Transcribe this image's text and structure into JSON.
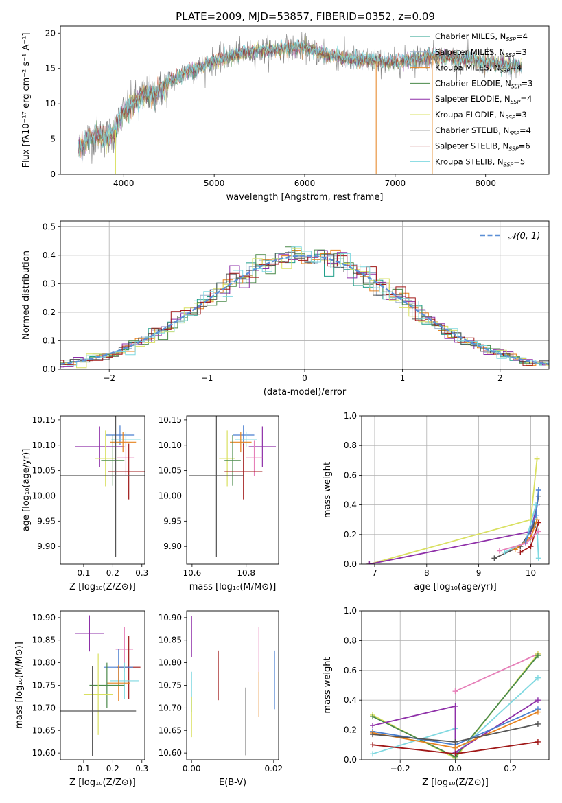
{
  "title": "PLATE=2009, MJD=53857, FIBERID=0352, z=0.09",
  "colors": {
    "chabrier_miles": "#1f9e89",
    "salpeter_miles": "#9bb0cc",
    "kroupa_miles": "#e6821e",
    "chabrier_elodie": "#4a8a4a",
    "salpeter_elodie": "#8e2fa8",
    "kroupa_elodie": "#d9e060",
    "chabrier_stelib": "#555555",
    "salpeter_stelib": "#a01818",
    "kroupa_stelib": "#7fd8e0",
    "normal": "#5b8fd6",
    "pink": "#e67fb8",
    "blue": "#4a7fd0"
  },
  "chart_data": [
    {
      "id": "spectrum",
      "type": "line",
      "title": "PLATE=2009, MJD=53857, FIBERID=0352, z=0.09",
      "xlabel": "wavelength [Angstrom, rest frame]",
      "ylabel": "Flux [fλ10⁻¹⁷ erg cm⁻² s⁻¹ A⁻¹]",
      "xlim": [
        3300,
        8700
      ],
      "ylim": [
        0,
        21
      ],
      "xticks": [
        "4000",
        "5000",
        "6000",
        "7000",
        "8000"
      ],
      "yticks": [
        "0",
        "5",
        "10",
        "15",
        "20"
      ],
      "legend_position": "right",
      "legend": [
        {
          "label": "Chabrier MILES, N",
          "sub": "SSP",
          "suffix": "=4"
        },
        {
          "label": "Salpeter MILES, N",
          "sub": "SSP",
          "suffix": "=3"
        },
        {
          "label": "Kroupa MILES, N",
          "sub": "SSP",
          "suffix": "=4"
        },
        {
          "label": "Chabrier ELODIE, N",
          "sub": "SSP",
          "suffix": "=3"
        },
        {
          "label": "Salpeter ELODIE, N",
          "sub": "SSP",
          "suffix": "=4"
        },
        {
          "label": "Kroupa ELODIE, N",
          "sub": "SSP",
          "suffix": "=3"
        },
        {
          "label": "Chabrier STELIB, N",
          "sub": "SSP",
          "suffix": "=4"
        },
        {
          "label": "Salpeter STELIB, N",
          "sub": "SSP",
          "suffix": "=6"
        },
        {
          "label": "Kroupa STELIB, N",
          "sub": "SSP",
          "suffix": "=5"
        }
      ],
      "continuum": {
        "x": [
          3500,
          3600,
          3700,
          3800,
          3900,
          4000,
          4100,
          4200,
          4300,
          4400,
          4500,
          4700,
          5000,
          5200,
          5500,
          5800,
          6000,
          6200,
          6500,
          6800,
          7000,
          7200,
          7400,
          7600,
          7800,
          8000,
          8200,
          8400
        ],
        "y": [
          3.5,
          5.0,
          5.5,
          5.2,
          6.0,
          9.0,
          10.0,
          11.0,
          11.2,
          11.8,
          13.0,
          14.5,
          16.0,
          16.8,
          17.5,
          17.8,
          18.0,
          17.0,
          16.3,
          16.0,
          15.8,
          16.3,
          16.8,
          16.5,
          16.2,
          15.8,
          15.5,
          15.2
        ]
      },
      "drops": [
        {
          "x": 3910,
          "series": "kroupa_elodie"
        },
        {
          "x": 6790,
          "series": "kroupa_miles"
        },
        {
          "x": 7410,
          "series": "kroupa_miles"
        }
      ]
    },
    {
      "id": "residuals",
      "type": "histogram",
      "xlabel": "(data-model)/error",
      "ylabel": "Normed distribution",
      "xlim": [
        -2.5,
        2.5
      ],
      "ylim": [
        0,
        0.52
      ],
      "xticks": [
        "−2",
        "−1",
        "0",
        "1",
        "2"
      ],
      "yticks": [
        "0.0",
        "0.1",
        "0.2",
        "0.3",
        "0.4",
        "0.5"
      ],
      "grid": true,
      "legend": "𝒩(0, 1)",
      "normal": {
        "mu": 0,
        "sigma": 1
      }
    },
    {
      "id": "age_vs_z",
      "type": "errorbar",
      "xlabel": "Z [log₁₀(Z/Z⊙)]",
      "ylabel": "age  [log₁₀(age/yr)]",
      "xlim": [
        0.02,
        0.31
      ],
      "ylim": [
        9.865,
        10.158
      ],
      "xticks": [
        "0.1",
        "0.2",
        "0.3"
      ],
      "yticks": [
        "9.90",
        "9.95",
        "10.00",
        "10.05",
        "10.10",
        "10.15"
      ],
      "points": [
        {
          "color": "blue",
          "x": 0.225,
          "y": 10.12,
          "xerr": 0.05,
          "yerr": 0.02
        },
        {
          "color": "kroupa_stelib",
          "x": 0.245,
          "y": 10.112,
          "xerr": 0.05,
          "yerr": 0.015
        },
        {
          "color": "salpeter_elodie",
          "x": 0.155,
          "y": 10.097,
          "xerr": 0.085,
          "yerr": 0.04
        },
        {
          "color": "kroupa_miles",
          "x": 0.235,
          "y": 10.106,
          "xerr": 0.045,
          "yerr": 0.02
        },
        {
          "color": "pink",
          "x": 0.245,
          "y": 10.075,
          "xerr": 0.03,
          "yerr": 0.035
        },
        {
          "color": "kroupa_elodie",
          "x": 0.175,
          "y": 10.074,
          "xerr": 0.035,
          "yerr": 0.055
        },
        {
          "color": "chabrier_elodie",
          "x": 0.2,
          "y": 10.07,
          "xerr": 0.04,
          "yerr": 0.05
        },
        {
          "color": "salpeter_stelib",
          "x": 0.255,
          "y": 10.048,
          "xerr": 0.07,
          "yerr": 0.055
        },
        {
          "color": "chabrier_stelib",
          "x": 0.21,
          "y": 10.04,
          "xerr": 0.19,
          "yerr": 0.16
        }
      ]
    },
    {
      "id": "age_vs_mass",
      "type": "errorbar",
      "xlabel": "mass [log₁₀(M/M⊙)]",
      "ylabel": "",
      "xlim": [
        10.58,
        10.92
      ],
      "ylim": [
        9.865,
        10.158
      ],
      "xticks": [
        "10.6",
        "10.8"
      ],
      "yticks": [
        "9.90",
        "9.95",
        "10.00",
        "10.05",
        "10.10",
        "10.15"
      ],
      "points": [
        {
          "color": "blue",
          "x": 10.79,
          "y": 10.12,
          "xerr": 0.04,
          "yerr": 0.02
        },
        {
          "color": "kroupa_stelib",
          "x": 10.8,
          "y": 10.112,
          "xerr": 0.04,
          "yerr": 0.015
        },
        {
          "color": "salpeter_elodie",
          "x": 10.86,
          "y": 10.097,
          "xerr": 0.05,
          "yerr": 0.04
        },
        {
          "color": "kroupa_miles",
          "x": 10.78,
          "y": 10.106,
          "xerr": 0.04,
          "yerr": 0.02
        },
        {
          "color": "pink",
          "x": 10.83,
          "y": 10.075,
          "xerr": 0.03,
          "yerr": 0.035
        },
        {
          "color": "kroupa_elodie",
          "x": 10.73,
          "y": 10.074,
          "xerr": 0.03,
          "yerr": 0.055
        },
        {
          "color": "chabrier_elodie",
          "x": 10.75,
          "y": 10.07,
          "xerr": 0.03,
          "yerr": 0.05
        },
        {
          "color": "salpeter_stelib",
          "x": 10.79,
          "y": 10.048,
          "xerr": 0.07,
          "yerr": 0.055
        },
        {
          "color": "chabrier_stelib",
          "x": 10.69,
          "y": 10.04,
          "xerr": 0.1,
          "yerr": 0.16
        }
      ]
    },
    {
      "id": "mass_weight_vs_age",
      "type": "line",
      "xlabel": "age  [log₁₀(age/yr)]",
      "ylabel": "mass weight",
      "xlim": [
        6.75,
        10.35
      ],
      "ylim": [
        0,
        1
      ],
      "xticks": [
        "7",
        "8",
        "9",
        "10"
      ],
      "yticks": [
        "0.0",
        "0.2",
        "0.4",
        "0.6",
        "0.8",
        "1.0"
      ],
      "grid": true,
      "series": [
        {
          "color": "kroupa_elodie",
          "x": [
            6.9,
            10.0,
            10.12
          ],
          "y": [
            0.0,
            0.3,
            0.71
          ]
        },
        {
          "color": "salpeter_elodie",
          "x": [
            6.9,
            10.0,
            10.12
          ],
          "y": [
            0.0,
            0.22,
            0.4
          ]
        },
        {
          "color": "chabrier_stelib",
          "x": [
            9.3,
            9.8,
            10.05,
            10.15
          ],
          "y": [
            0.04,
            0.12,
            0.25,
            0.46
          ]
        },
        {
          "color": "kroupa_stelib",
          "x": [
            9.5,
            9.9,
            10.1,
            10.15
          ],
          "y": [
            0.08,
            0.15,
            0.4,
            0.04
          ]
        },
        {
          "color": "salpeter_stelib",
          "x": [
            9.8,
            10.0,
            10.15
          ],
          "y": [
            0.08,
            0.12,
            0.28
          ]
        },
        {
          "color": "kroupa_miles",
          "x": [
            9.7,
            10.0,
            10.12
          ],
          "y": [
            0.1,
            0.18,
            0.3
          ]
        },
        {
          "color": "pink",
          "x": [
            9.4,
            9.9,
            10.15
          ],
          "y": [
            0.09,
            0.14,
            0.22
          ]
        },
        {
          "color": "blue",
          "x": [
            9.9,
            10.1,
            10.15
          ],
          "y": [
            0.15,
            0.33,
            0.5
          ]
        }
      ]
    },
    {
      "id": "mass_vs_z",
      "type": "errorbar",
      "xlabel": "Z [log₁₀(Z/Z⊙)]",
      "ylabel": "mass [log₁₀(M/M⊙)]",
      "xlim": [
        0.02,
        0.31
      ],
      "ylim": [
        10.585,
        10.915
      ],
      "xticks": [
        "0.1",
        "0.2",
        "0.3"
      ],
      "yticks": [
        "10.60",
        "10.65",
        "10.70",
        "10.75",
        "10.80",
        "10.85",
        "10.90"
      ],
      "points": [
        {
          "color": "salpeter_elodie",
          "x": 0.12,
          "y": 10.865,
          "xerr": 0.05,
          "yerr": 0.04
        },
        {
          "color": "pink",
          "x": 0.24,
          "y": 10.83,
          "xerr": 0.03,
          "yerr": 0.05
        },
        {
          "color": "salpeter_stelib",
          "x": 0.255,
          "y": 10.79,
          "xerr": 0.04,
          "yerr": 0.07
        },
        {
          "color": "blue",
          "x": 0.22,
          "y": 10.79,
          "xerr": 0.05,
          "yerr": 0.04
        },
        {
          "color": "kroupa_stelib",
          "x": 0.24,
          "y": 10.76,
          "xerr": 0.05,
          "yerr": 0.04
        },
        {
          "color": "kroupa_miles",
          "x": 0.22,
          "y": 10.755,
          "xerr": 0.04,
          "yerr": 0.04
        },
        {
          "color": "chabrier_elodie",
          "x": 0.18,
          "y": 10.75,
          "xerr": 0.06,
          "yerr": 0.05
        },
        {
          "color": "kroupa_elodie",
          "x": 0.15,
          "y": 10.73,
          "xerr": 0.05,
          "yerr": 0.09
        },
        {
          "color": "chabrier_stelib",
          "x": 0.13,
          "y": 10.693,
          "xerr": 0.15,
          "yerr": 0.1
        }
      ]
    },
    {
      "id": "mass_vs_ebv",
      "type": "errorbar",
      "xlabel": "E(B-V)",
      "ylabel": "",
      "xlim": [
        -0.0012,
        0.0212
      ],
      "ylim": [
        10.585,
        10.915
      ],
      "xticks": [
        "0.00",
        "0.02"
      ],
      "yticks": [
        "10.60",
        "10.65",
        "10.70",
        "10.75",
        "10.80",
        "10.85",
        "10.90"
      ],
      "points": [
        {
          "color": "salpeter_elodie",
          "x": 0.0,
          "y": 10.858,
          "xerr": 0,
          "yerr": 0.045
        },
        {
          "color": "kroupa_stelib",
          "x": 0.0,
          "y": 10.735,
          "xerr": 0,
          "yerr": 0.045
        },
        {
          "color": "kroupa_elodie",
          "x": 0.0,
          "y": 10.68,
          "xerr": 0,
          "yerr": 0.045
        },
        {
          "color": "salpeter_stelib",
          "x": 0.0065,
          "y": 10.772,
          "xerr": 0,
          "yerr": 0.055
        },
        {
          "color": "chabrier_stelib",
          "x": 0.0132,
          "y": 10.67,
          "xerr": 0,
          "yerr": 0.075
        },
        {
          "color": "pink",
          "x": 0.0164,
          "y": 10.83,
          "xerr": 0,
          "yerr": 0.05
        },
        {
          "color": "kroupa_miles",
          "x": 0.0164,
          "y": 10.73,
          "xerr": 0,
          "yerr": 0.05
        },
        {
          "color": "blue",
          "x": 0.0202,
          "y": 10.762,
          "xerr": 0,
          "yerr": 0.065
        }
      ]
    },
    {
      "id": "mass_weight_vs_z",
      "type": "line",
      "xlabel": "Z [log₁₀(Z/Z⊙)]",
      "ylabel": "mass weight",
      "xlim": [
        -0.34,
        0.34
      ],
      "ylim": [
        0,
        1
      ],
      "xticks": [
        "−0.2",
        "0.0",
        "0.2"
      ],
      "yticks": [
        "0.0",
        "0.2",
        "0.4",
        "0.6",
        "0.8",
        "1.0"
      ],
      "grid": true,
      "series": [
        {
          "color": "pink",
          "x": [
            0.0,
            0.3
          ],
          "y": [
            0.46,
            0.71
          ]
        },
        {
          "color": "kroupa_elodie",
          "x": [
            -0.3,
            0.0,
            0.3
          ],
          "y": [
            0.3,
            0.01,
            0.71
          ]
        },
        {
          "color": "chabrier_elodie",
          "x": [
            -0.3,
            0.0,
            0.3
          ],
          "y": [
            0.29,
            0.02,
            0.7
          ]
        },
        {
          "color": "kroupa_stelib",
          "x": [
            -0.3,
            0.0,
            0.0,
            0.3
          ],
          "y": [
            0.04,
            0.21,
            0.04,
            0.55
          ]
        },
        {
          "color": "salpeter_elodie",
          "x": [
            -0.3,
            0.0,
            0.0,
            0.3
          ],
          "y": [
            0.23,
            0.36,
            0.05,
            0.4
          ]
        },
        {
          "color": "blue",
          "x": [
            -0.3,
            0.0,
            0.3
          ],
          "y": [
            0.19,
            0.1,
            0.34
          ]
        },
        {
          "color": "kroupa_miles",
          "x": [
            -0.3,
            0.0,
            0.3
          ],
          "y": [
            0.18,
            0.08,
            0.32
          ]
        },
        {
          "color": "chabrier_stelib",
          "x": [
            -0.3,
            0.0,
            0.3
          ],
          "y": [
            0.17,
            0.12,
            0.24
          ]
        },
        {
          "color": "salpeter_stelib",
          "x": [
            -0.3,
            0.0,
            0.3
          ],
          "y": [
            0.1,
            0.04,
            0.12
          ]
        }
      ]
    }
  ]
}
